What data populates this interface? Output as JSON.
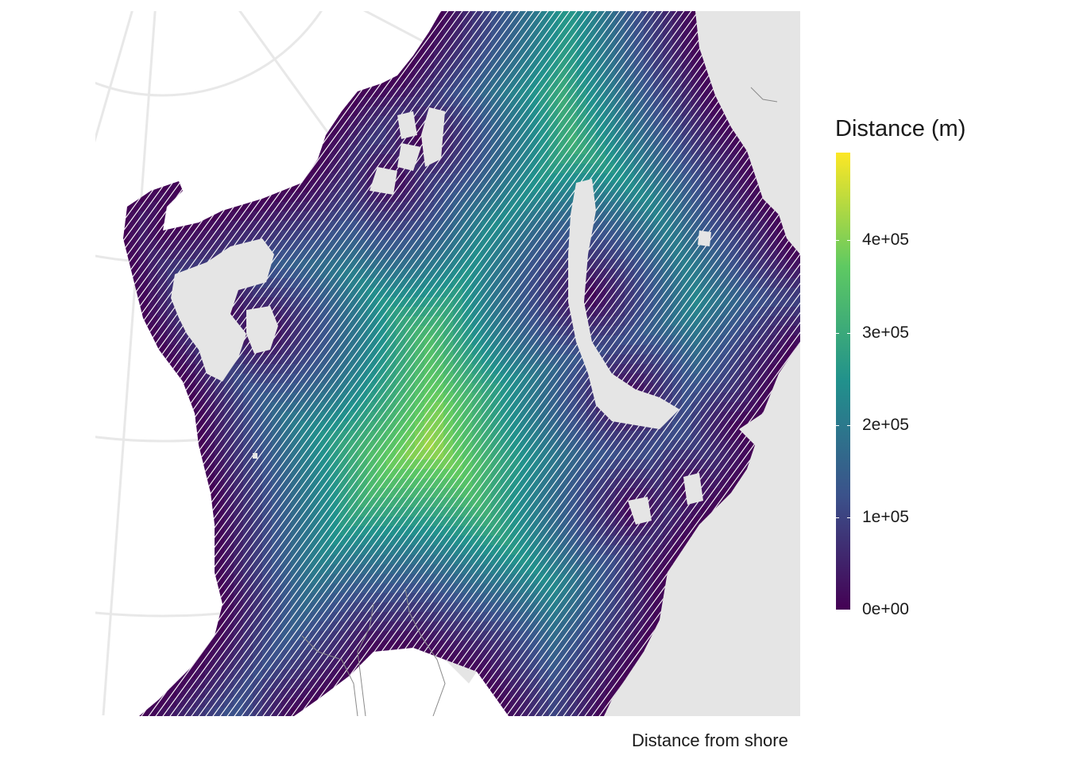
{
  "map": {
    "legend_title": "Distance (m)",
    "legend_ticks": [
      {
        "label": "4e+05",
        "value": 400000
      },
      {
        "label": "3e+05",
        "value": 300000
      },
      {
        "label": "2e+05",
        "value": 200000
      },
      {
        "label": "1e+05",
        "value": 100000
      },
      {
        "label": "0e+00",
        "value": 0
      }
    ],
    "color_scale": {
      "name": "viridis",
      "min": 0,
      "max": 495000,
      "colors": [
        "#440154",
        "#3b528b",
        "#21918c",
        "#5ec962",
        "#fde725"
      ]
    },
    "caption": "Distance from shore",
    "land_color": "#e5e5e5",
    "graticule_color": "#e8e8e8"
  }
}
